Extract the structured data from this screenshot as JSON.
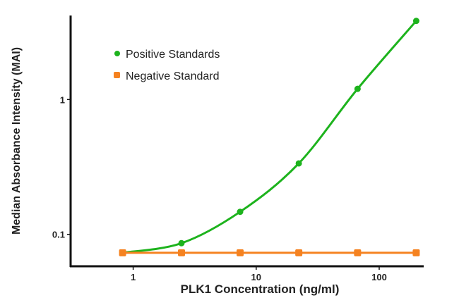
{
  "chart_data": {
    "type": "line",
    "title": "",
    "xlabel": "PLK1 Concentration (ng/ml)",
    "ylabel": "Median Absorbance Intensity (MAI)",
    "x_scale": "log",
    "y_scale": "log",
    "xlim": [
      0.31,
      230
    ],
    "ylim": [
      0.058,
      4.2
    ],
    "x_ticks": [
      {
        "value": 1,
        "label": "1"
      },
      {
        "value": 10,
        "label": "10"
      },
      {
        "value": 100,
        "label": "100"
      }
    ],
    "y_ticks": [
      {
        "value": 0.1,
        "label": "0.1"
      },
      {
        "value": 1,
        "label": "1"
      }
    ],
    "grid": false,
    "legend_position": "top-left",
    "x": [
      0.82,
      2.47,
      7.4,
      22.2,
      66.7,
      200
    ],
    "series": [
      {
        "name": "Positive Standards",
        "color": "#1db31d",
        "marker": "circle",
        "values": [
          0.073,
          0.086,
          0.147,
          0.336,
          1.2,
          3.83
        ]
      },
      {
        "name": "Negative Standard",
        "color": "#f58220",
        "marker": "square",
        "values": [
          0.073,
          0.073,
          0.073,
          0.073,
          0.073,
          0.073
        ]
      }
    ]
  }
}
